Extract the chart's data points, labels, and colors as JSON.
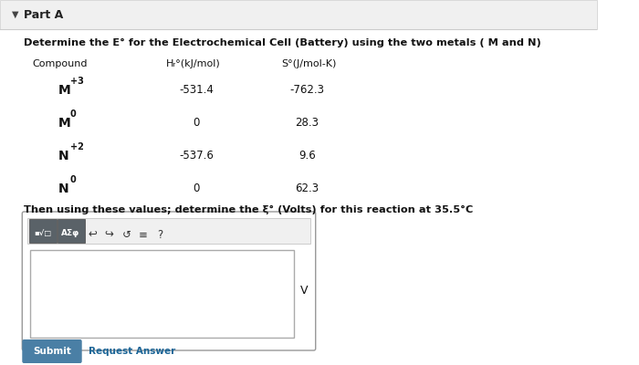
{
  "bg_color": "#f0f0f0",
  "white_bg": "#ffffff",
  "part_a_label": "Part A",
  "title_line1": "Determine the E° for the Electrochemical Cell (Battery) using the two metals ( M and N)",
  "col_header_compound": "Compound",
  "col_header_h": "Hᵣ°(kJ/mol)",
  "col_header_s": "S°(J/mol-K)",
  "compounds": [
    [
      "M",
      "+3"
    ],
    [
      "M",
      "0"
    ],
    [
      "N",
      "+2"
    ],
    [
      "N",
      "0"
    ]
  ],
  "h_vals": [
    "-531.4",
    "0",
    "-537.6",
    "0"
  ],
  "s_vals": [
    "-762.3",
    "28.3",
    "9.6",
    "62.3"
  ],
  "then_line": "Then using these values; determine the ξ° (Volts) for this reaction at 35.5°C",
  "submit_label": "Submit",
  "request_label": "Request Answer",
  "submit_bg": "#4a7fa5",
  "submit_color": "#ffffff",
  "input_border": "#aaaaaa",
  "v_label": "V",
  "divider_color": "#cccccc",
  "text_color": "#111111"
}
